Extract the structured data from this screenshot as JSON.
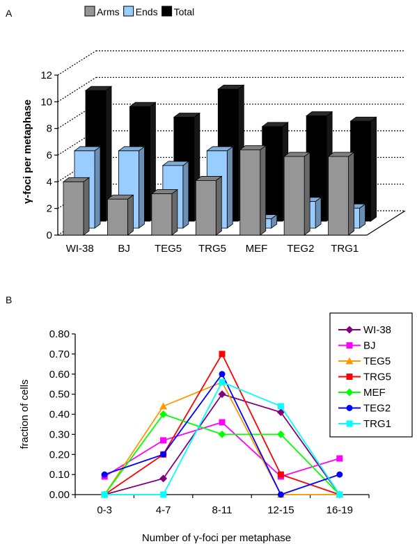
{
  "chart_data": [
    {
      "type": "bar",
      "panel_label": "A",
      "ylabel": "γ-foci per metaphase",
      "ylim": [
        0,
        12
      ],
      "yticks": [
        0,
        2,
        4,
        6,
        8,
        10,
        12
      ],
      "categories": [
        "WI-38",
        "BJ",
        "TEG5",
        "TRG5",
        "MEF",
        "TEG2",
        "TRG1"
      ],
      "series": [
        {
          "name": "Arms",
          "color": "#969696",
          "values": [
            4.0,
            2.7,
            3.1,
            4.1,
            6.4,
            5.9,
            5.9
          ]
        },
        {
          "name": "Ends",
          "color": "#99ccff",
          "values": [
            5.8,
            5.8,
            4.7,
            5.8,
            0.7,
            2.0,
            1.5
          ]
        },
        {
          "name": "Total",
          "color": "#000000",
          "values": [
            9.8,
            8.6,
            7.8,
            9.9,
            7.1,
            7.9,
            7.5
          ]
        }
      ],
      "grid": true,
      "legend": "top"
    },
    {
      "type": "line",
      "panel_label": "B",
      "xlabel": "Number of γ-foci per metaphase",
      "ylabel": "fraction of cells",
      "ylim": [
        0,
        0.8
      ],
      "yticks": [
        "0.00",
        "0.10",
        "0.20",
        "0.30",
        "0.40",
        "0.50",
        "0.60",
        "0.70",
        "0.80"
      ],
      "categories": [
        "0-3",
        "4-7",
        "8-11",
        "12-15",
        "16-19"
      ],
      "series": [
        {
          "name": "WI-38",
          "color": "#800080",
          "marker": "diamond",
          "values": [
            0.0,
            0.08,
            0.5,
            0.41,
            0.0
          ]
        },
        {
          "name": "BJ",
          "color": "#ff00ff",
          "marker": "square",
          "values": [
            0.09,
            0.27,
            0.36,
            0.09,
            0.18
          ]
        },
        {
          "name": "TEG5",
          "color": "#ff9900",
          "marker": "triangle",
          "values": [
            0.0,
            0.44,
            0.56,
            0.0,
            0.0
          ]
        },
        {
          "name": "TRG5",
          "color": "#ff0000",
          "marker": "square",
          "values": [
            0.0,
            0.2,
            0.7,
            0.1,
            0.0
          ]
        },
        {
          "name": "MEF",
          "color": "#00ff00",
          "marker": "diamond",
          "values": [
            0.0,
            0.4,
            0.3,
            0.3,
            0.0
          ]
        },
        {
          "name": "TEG2",
          "color": "#0000ff",
          "marker": "circle",
          "values": [
            0.1,
            0.2,
            0.6,
            0.0,
            0.1
          ]
        },
        {
          "name": "TRG1",
          "color": "#00ffff",
          "marker": "square",
          "values": [
            0.0,
            0.0,
            0.56,
            0.44,
            0.0
          ]
        }
      ],
      "legend": "top-right"
    }
  ]
}
